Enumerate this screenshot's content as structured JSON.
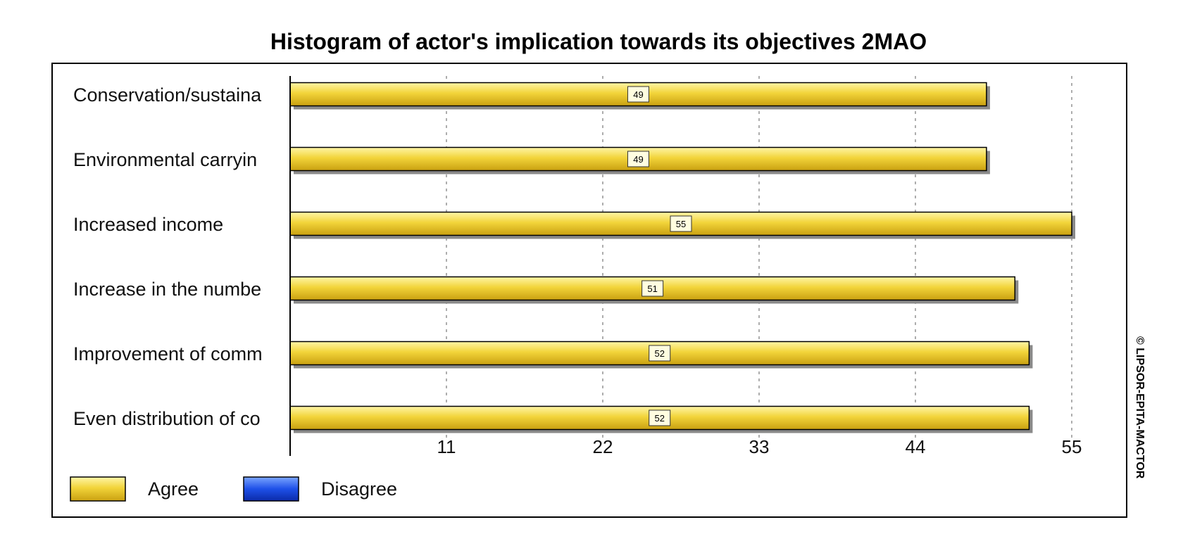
{
  "chart_data": {
    "type": "bar",
    "orientation": "horizontal",
    "title": "Histogram of actor's implication towards its objectives 2MAO",
    "categories": [
      "Conservation/sustaina",
      "Environmental carryin",
      "Increased income",
      "Increase in the numbe",
      "Improvement  of comm",
      "Even distribution of co"
    ],
    "series": [
      {
        "name": "Agree",
        "values": [
          49,
          49,
          55,
          51,
          52,
          52
        ],
        "color": "#e8c628"
      },
      {
        "name": "Disagree",
        "values": [
          0,
          0,
          0,
          0,
          0,
          0
        ],
        "color": "#1e50e8"
      }
    ],
    "x_ticks": [
      11,
      22,
      33,
      44,
      55
    ],
    "xlim": [
      0,
      55
    ],
    "grid": "vertical-dashed",
    "legend_position": "bottom-left",
    "credit": "© LIPSOR-EPITA-MACTOR"
  }
}
